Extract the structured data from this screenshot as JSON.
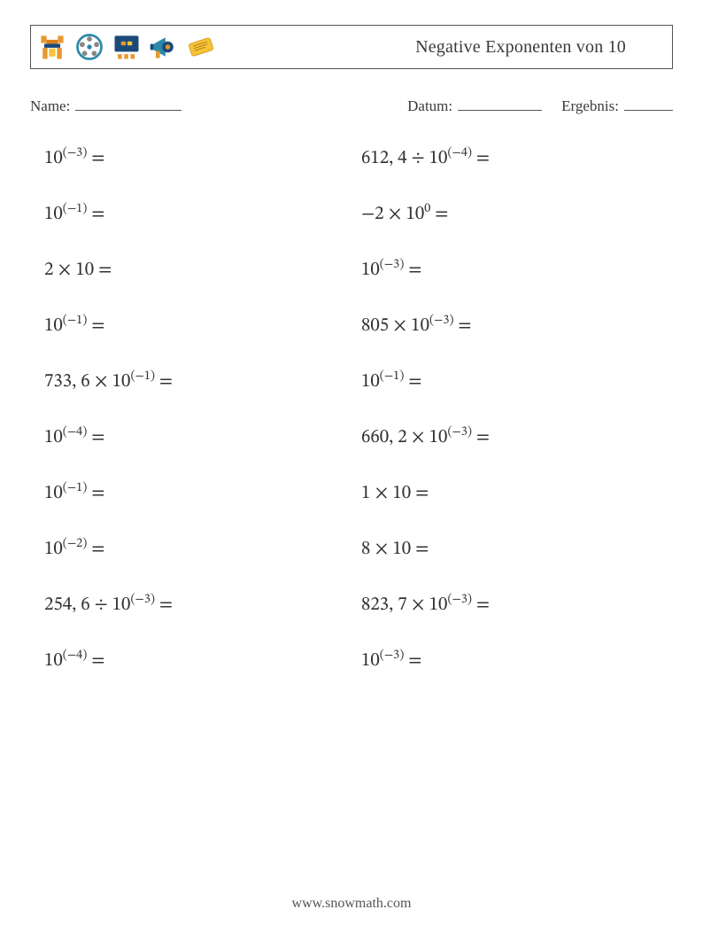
{
  "header": {
    "title": "Negative Exponenten von 10",
    "icons": [
      "tower-icon",
      "film-reel-icon",
      "screen-icon",
      "megaphone-icon",
      "ticket-icon"
    ]
  },
  "meta": {
    "name_label": "Name:",
    "date_label": "Datum:",
    "result_label": "Ergebnis:"
  },
  "problems": {
    "left": [
      {
        "base": "10",
        "sup": "(−3)",
        "op": "",
        "lhs": "",
        "rhs": " ="
      },
      {
        "base": "10",
        "sup": "(−1)",
        "op": "",
        "lhs": "",
        "rhs": " ="
      },
      {
        "base": "10",
        "sup": "",
        "op": "×",
        "lhs": "2 ",
        "rhs": " ="
      },
      {
        "base": "10",
        "sup": "(−1)",
        "op": "",
        "lhs": "",
        "rhs": " ="
      },
      {
        "base": "10",
        "sup": "(−1)",
        "op": "×",
        "lhs": "733, 6 ",
        "rhs": " ="
      },
      {
        "base": "10",
        "sup": "(−4)",
        "op": "",
        "lhs": "",
        "rhs": " ="
      },
      {
        "base": "10",
        "sup": "(−1)",
        "op": "",
        "lhs": "",
        "rhs": " ="
      },
      {
        "base": "10",
        "sup": "(−2)",
        "op": "",
        "lhs": "",
        "rhs": " ="
      },
      {
        "base": "10",
        "sup": "(−3)",
        "op": "÷",
        "lhs": "254, 6 ",
        "rhs": " ="
      },
      {
        "base": "10",
        "sup": "(−4)",
        "op": "",
        "lhs": "",
        "rhs": " ="
      }
    ],
    "right": [
      {
        "base": "10",
        "sup": "(−4)",
        "op": "÷",
        "lhs": "612, 4 ",
        "rhs": " ="
      },
      {
        "base": "10",
        "sup": "0",
        "op": "×",
        "lhs": "−2 ",
        "rhs": " ="
      },
      {
        "base": "10",
        "sup": "(−3)",
        "op": "",
        "lhs": "",
        "rhs": " ="
      },
      {
        "base": "10",
        "sup": "(−3)",
        "op": "×",
        "lhs": "805 ",
        "rhs": " ="
      },
      {
        "base": "10",
        "sup": "(−1)",
        "op": "",
        "lhs": "",
        "rhs": " ="
      },
      {
        "base": "10",
        "sup": "(−3)",
        "op": "×",
        "lhs": "660, 2 ",
        "rhs": " ="
      },
      {
        "base": "10",
        "sup": "",
        "op": "×",
        "lhs": "1 ",
        "rhs": " ="
      },
      {
        "base": "10",
        "sup": "",
        "op": "×",
        "lhs": "8 ",
        "rhs": " ="
      },
      {
        "base": "10",
        "sup": "(−3)",
        "op": "×",
        "lhs": "823, 7 ",
        "rhs": " ="
      },
      {
        "base": "10",
        "sup": "(−3)",
        "op": "",
        "lhs": "",
        "rhs": " ="
      }
    ]
  },
  "footer": {
    "text": "www.snowmath.com"
  },
  "colors": {
    "text": "#404040",
    "border": "#555555",
    "background": "#ffffff",
    "icon_orange": "#e8972f",
    "icon_navy": "#1b4a7a",
    "icon_teal": "#2b8aa8",
    "icon_yellow": "#f5c338",
    "icon_gray": "#888888"
  }
}
